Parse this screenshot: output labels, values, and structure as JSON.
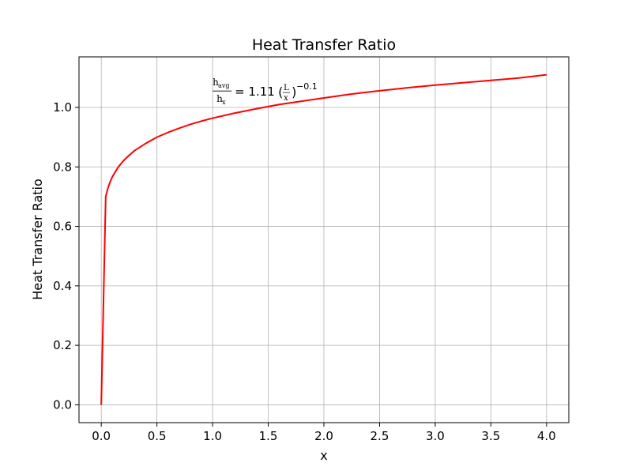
{
  "chart_data": {
    "type": "line",
    "title": "Heat Transfer Ratio",
    "xlabel": "x",
    "ylabel": "Heat Transfer Ratio",
    "xlim": [
      -0.2,
      4.2
    ],
    "ylim": [
      -0.06,
      1.17
    ],
    "x_ticks": [
      0.0,
      0.5,
      1.0,
      1.5,
      2.0,
      2.5,
      3.0,
      3.5,
      4.0
    ],
    "x_tick_labels": [
      "0.0",
      "0.5",
      "1.0",
      "1.5",
      "2.0",
      "2.5",
      "3.0",
      "3.5",
      "4.0"
    ],
    "y_ticks": [
      0.0,
      0.2,
      0.4,
      0.6,
      0.8,
      1.0
    ],
    "y_tick_labels": [
      "0.0",
      "0.2",
      "0.4",
      "0.6",
      "0.8",
      "1.0"
    ],
    "grid": true,
    "series": [
      {
        "color": "#ff0000",
        "x": [
          0.0,
          0.04,
          0.06,
          0.08,
          0.1,
          0.15,
          0.2,
          0.25,
          0.3,
          0.4,
          0.5,
          0.6,
          0.7,
          0.8,
          0.9,
          1.0,
          1.2,
          1.4,
          1.6,
          1.8,
          2.0,
          2.25,
          2.5,
          2.75,
          3.0,
          3.25,
          3.5,
          3.75,
          4.0
        ],
        "y": [
          0.0,
          0.7,
          0.729,
          0.75,
          0.767,
          0.798,
          0.821,
          0.839,
          0.855,
          0.879,
          0.9,
          0.916,
          0.93,
          0.943,
          0.954,
          0.964,
          0.981,
          0.996,
          1.01,
          1.021,
          1.032,
          1.045,
          1.056,
          1.066,
          1.075,
          1.083,
          1.091,
          1.099,
          1.11
        ]
      }
    ],
    "annotation": {
      "x": 1.0,
      "y": 1.05,
      "numerator": "h",
      "numerator_sub": "avg",
      "denominator": "h",
      "denominator_sub": "x",
      "equals": "= 1.11",
      "paren_open": "(",
      "frac_num": "L",
      "frac_den": "x",
      "paren_close": ")",
      "exponent": "−0.1"
    }
  }
}
